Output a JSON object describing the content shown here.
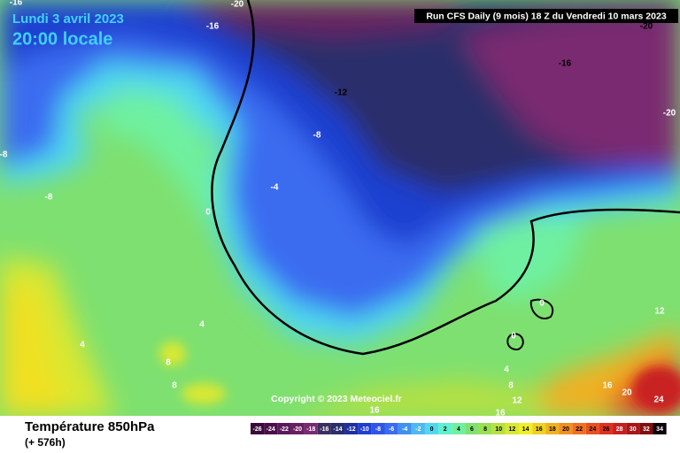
{
  "map": {
    "date": "Lundi 3 avril 2023",
    "time": "20:00 locale",
    "run": "Run CFS Daily (9 mois) 18 Z du Vendredi 10 mars 2023",
    "copyright": "Copyright © 2023 Meteociel.fr",
    "variable": "Température 850hPa",
    "lead": "(+ 576h)",
    "contour_labels": [
      -16,
      -20,
      -16,
      -20,
      -16,
      -12,
      -20,
      -8,
      -8,
      -4,
      -8,
      0,
      0,
      0,
      4,
      4,
      4,
      8,
      8,
      8,
      12,
      12,
      16,
      16,
      16,
      20,
      24
    ],
    "colorbar": {
      "ticks": [
        -26,
        -24,
        -22,
        -20,
        -18,
        -16,
        -14,
        -12,
        -10,
        -8,
        -6,
        -4,
        -2,
        0,
        2,
        4,
        6,
        8,
        10,
        12,
        14,
        16,
        18,
        20,
        22,
        24,
        26,
        28,
        30,
        32,
        34
      ],
      "colors": [
        "#3a0a3a",
        "#4a0f4a",
        "#5a1a5a",
        "#6a2060",
        "#7a2a70",
        "#3a3060",
        "#2a2f6a",
        "#1f2fa0",
        "#1f3fd0",
        "#2f55e8",
        "#3b6cf0",
        "#3f90f0",
        "#4fb8f0",
        "#4fd8f0",
        "#5ef0d0",
        "#6ef0a0",
        "#80e070",
        "#98e050",
        "#b8e040",
        "#d8e830",
        "#f0f020",
        "#f0d020",
        "#f0b020",
        "#f09020",
        "#f07020",
        "#e85020",
        "#e03020",
        "#c82020",
        "#a81818",
        "#801010",
        "#100008"
      ]
    }
  }
}
